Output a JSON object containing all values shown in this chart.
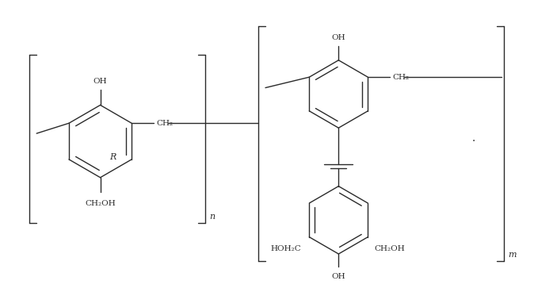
{
  "bg_color": "#ffffff",
  "line_color": "#2a2a2a",
  "lw": 1.0,
  "figsize": [
    6.74,
    3.73
  ],
  "dpi": 100,
  "labels": {
    "OH": "OH",
    "CH2": "CH₂",
    "CH2OH": "CH₂OH",
    "R": "R",
    "n": "n",
    "m": "m",
    "HOH2C": "HOH₂C",
    "CH2OH2": "CH₂OH"
  }
}
